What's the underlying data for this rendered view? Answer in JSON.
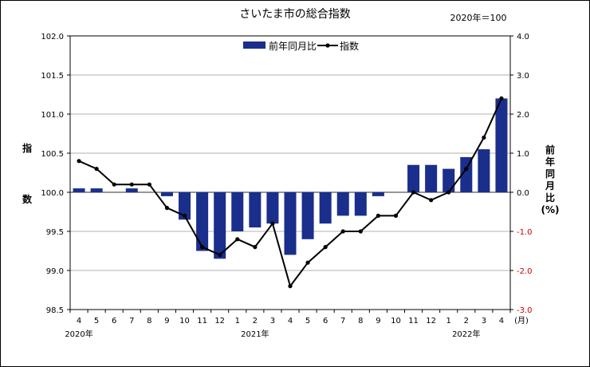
{
  "chart_data": {
    "type": "bar+line",
    "title": "さいたま市の総合指数",
    "base_note": "2020年＝100",
    "legend": {
      "bar": "前年同月比",
      "line": "指数",
      "placement": "top-center"
    },
    "y_left": {
      "label": [
        "指",
        "数"
      ],
      "min": 98.5,
      "max": 102.0,
      "step": 0.5,
      "tick_labels": [
        "98.5",
        "99.0",
        "99.5",
        "100.0",
        "100.5",
        "101.0",
        "101.5",
        "102.0"
      ]
    },
    "y_right": {
      "label": [
        "前",
        "年",
        "同",
        "月",
        "比",
        "(%)"
      ],
      "min": -3.0,
      "max": 4.0,
      "step": 1.0,
      "tick_labels": [
        "-3.0",
        "-2.0",
        "-1.0",
        "0.0",
        "1.0",
        "2.0",
        "3.0",
        "4.0"
      ]
    },
    "x_unit": "(月)",
    "categories": [
      "4",
      "5",
      "6",
      "7",
      "8",
      "9",
      "10",
      "11",
      "12",
      "1",
      "2",
      "3",
      "4",
      "5",
      "6",
      "7",
      "8",
      "9",
      "10",
      "11",
      "12",
      "1",
      "2",
      "3",
      "4"
    ],
    "year_labels": [
      {
        "label": "2020年",
        "index": 0
      },
      {
        "label": "2021年",
        "index": 10
      },
      {
        "label": "2022年",
        "index": 22
      }
    ],
    "series": [
      {
        "name": "前年同月比",
        "type": "bar",
        "axis": "right",
        "color": "#1a2e8c",
        "values": [
          0.1,
          0.1,
          0.0,
          0.1,
          0.0,
          -0.1,
          -0.7,
          -1.5,
          -1.7,
          -1.0,
          -0.9,
          -0.8,
          -1.6,
          -1.2,
          -0.8,
          -0.6,
          -0.6,
          -0.1,
          0.0,
          0.7,
          0.7,
          0.6,
          0.9,
          1.1,
          2.4
        ]
      },
      {
        "name": "指数",
        "type": "line",
        "axis": "left",
        "color": "#000000",
        "values": [
          100.4,
          100.3,
          100.1,
          100.1,
          100.1,
          99.8,
          99.7,
          99.3,
          99.2,
          99.4,
          99.3,
          99.6,
          98.8,
          99.1,
          99.3,
          99.5,
          99.5,
          99.7,
          99.7,
          100.0,
          99.9,
          100.0,
          100.3,
          100.7,
          101.2
        ]
      }
    ],
    "grid": "horizontal"
  }
}
